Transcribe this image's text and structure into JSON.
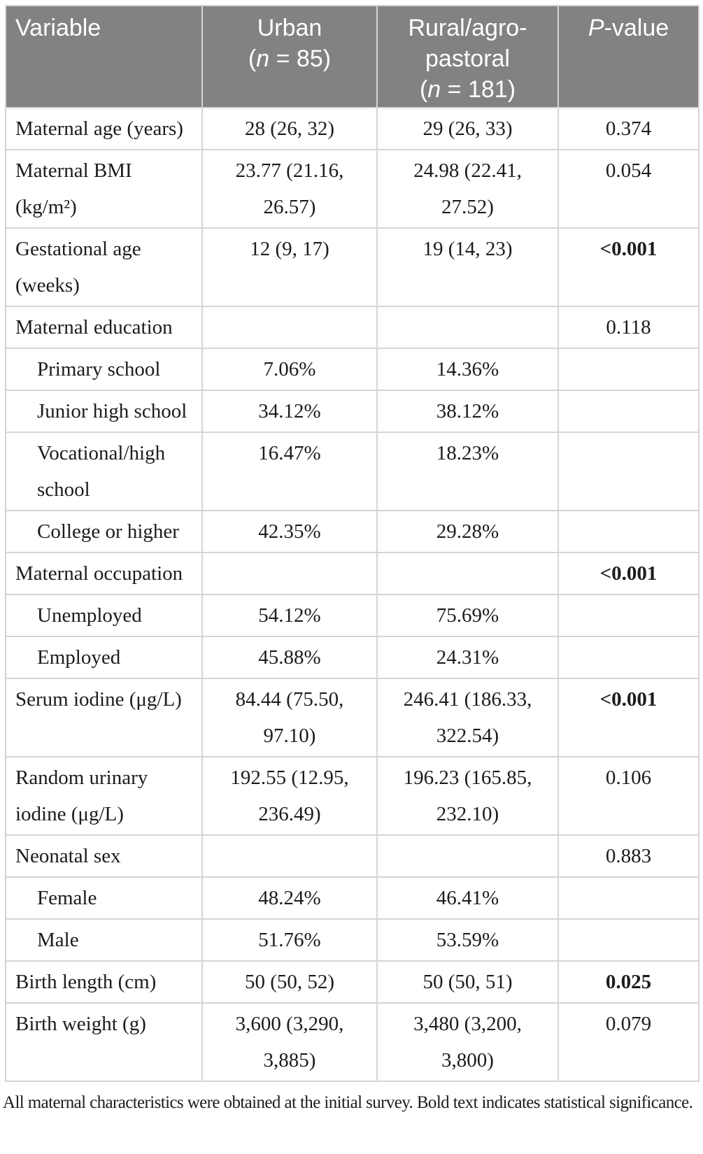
{
  "table": {
    "columns": [
      {
        "label": "Variable"
      },
      {
        "label": "Urban\n(*n* = 85)"
      },
      {
        "label": "Rural/agro-\npastoral\n(*n* = 181)"
      },
      {
        "label": "*P*-value"
      }
    ],
    "rows": [
      {
        "variable": "Maternal age (years)",
        "urban": "28 (26, 32)",
        "rural": "29 (26, 33)",
        "p": "0.374",
        "p_bold": false,
        "indent": false
      },
      {
        "variable": "Maternal BMI\n(kg/m²)",
        "urban": "23.77 (21.16,\n26.57)",
        "rural": "24.98 (22.41,\n27.52)",
        "p": "0.054",
        "p_bold": false,
        "indent": false
      },
      {
        "variable": "Gestational age\n(weeks)",
        "urban": "12 (9, 17)",
        "rural": "19 (14, 23)",
        "p": "<0.001",
        "p_bold": true,
        "indent": false
      },
      {
        "variable": "Maternal education",
        "urban": "",
        "rural": "",
        "p": "0.118",
        "p_bold": false,
        "indent": false
      },
      {
        "variable": "Primary school",
        "urban": "7.06%",
        "rural": "14.36%",
        "p": "",
        "p_bold": false,
        "indent": true
      },
      {
        "variable": "Junior high school",
        "urban": "34.12%",
        "rural": "38.12%",
        "p": "",
        "p_bold": false,
        "indent": true
      },
      {
        "variable": "Vocational/high\nschool",
        "urban": "16.47%",
        "rural": "18.23%",
        "p": "",
        "p_bold": false,
        "indent": true
      },
      {
        "variable": "College or higher",
        "urban": "42.35%",
        "rural": "29.28%",
        "p": "",
        "p_bold": false,
        "indent": true
      },
      {
        "variable": "Maternal occupation",
        "urban": "",
        "rural": "",
        "p": "<0.001",
        "p_bold": true,
        "indent": false
      },
      {
        "variable": "Unemployed",
        "urban": "54.12%",
        "rural": "75.69%",
        "p": "",
        "p_bold": false,
        "indent": true
      },
      {
        "variable": "Employed",
        "urban": "45.88%",
        "rural": "24.31%",
        "p": "",
        "p_bold": false,
        "indent": true
      },
      {
        "variable": "Serum iodine (μg/L)",
        "urban": "84.44 (75.50,\n97.10)",
        "rural": "246.41 (186.33,\n322.54)",
        "p": "<0.001",
        "p_bold": true,
        "indent": false
      },
      {
        "variable": "Random urinary\niodine (μg/L)",
        "urban": "192.55 (12.95,\n236.49)",
        "rural": "196.23 (165.85,\n232.10)",
        "p": "0.106",
        "p_bold": false,
        "indent": false
      },
      {
        "variable": "Neonatal sex",
        "urban": "",
        "rural": "",
        "p": "0.883",
        "p_bold": false,
        "indent": false
      },
      {
        "variable": "Female",
        "urban": "48.24%",
        "rural": "46.41%",
        "p": "",
        "p_bold": false,
        "indent": true
      },
      {
        "variable": "Male",
        "urban": "51.76%",
        "rural": "53.59%",
        "p": "",
        "p_bold": false,
        "indent": true
      },
      {
        "variable": "Birth length (cm)",
        "urban": "50 (50, 52)",
        "rural": "50 (50, 51)",
        "p": "0.025",
        "p_bold": true,
        "indent": false
      },
      {
        "variable": "Birth weight (g)",
        "urban": "3,600 (3,290,\n3,885)",
        "rural": "3,480 (3,200,\n3,800)",
        "p": "0.079",
        "p_bold": false,
        "indent": false
      }
    ],
    "footnote": "All maternal characteristics were obtained at the initial survey. Bold text indicates statistical significance.",
    "colors": {
      "header_bg": "#828282",
      "header_text": "#ffffff",
      "border": "#d5d5d5",
      "body_text": "#1c1c1c"
    }
  }
}
